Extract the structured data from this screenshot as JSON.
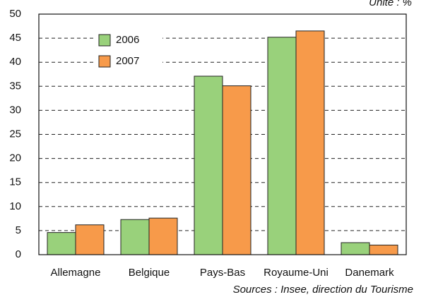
{
  "chart_data": {
    "type": "bar",
    "note": "Unité : %",
    "source": "Sources : Insee, direction du Tourisme",
    "categories": [
      "Allemagne",
      "Belgique",
      "Pays-Bas",
      "Royaume-Uni",
      "Danemark"
    ],
    "series": [
      {
        "name": "2006",
        "color": "#99d17b",
        "values": [
          4.6,
          7.3,
          37.1,
          45.2,
          2.5
        ]
      },
      {
        "name": "2007",
        "color": "#f79a4a",
        "values": [
          6.2,
          7.6,
          35.1,
          46.5,
          2.0
        ]
      }
    ],
    "ylim": [
      0,
      50
    ],
    "yticks": [
      0,
      5,
      10,
      15,
      20,
      25,
      30,
      35,
      40,
      45,
      50
    ],
    "grid": true,
    "legend": "upper left"
  }
}
